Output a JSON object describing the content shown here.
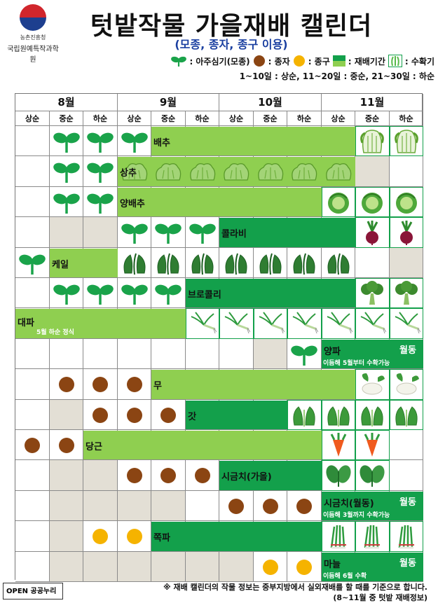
{
  "header": {
    "org_small": "농촌진흥청",
    "org_name": "국립원예특작과학원",
    "title": "텃밭작물 가을재배 캘린더",
    "subtitle": "(모종, 종자, 종구 이용)"
  },
  "legend": {
    "seedling": ": 아주심기(모종)",
    "seed": ": 종자",
    "bulb": ": 종구",
    "period": ": 재배기간",
    "harvest": ": 수확기",
    "periods_note": "1~10일 : 상순, 11~20일 : 중순, 21~30일 : 하순"
  },
  "colors": {
    "bar_light": "#8fcf50",
    "bar_dark": "#13a04b",
    "past": "#e3dfd5",
    "seed": "#8b4513",
    "bulb": "#f5b300"
  },
  "months": [
    "8월",
    "9월",
    "10월",
    "11월"
  ],
  "periods": [
    "상순",
    "중순",
    "하순"
  ],
  "crops": [
    {
      "name": "배추"
    },
    {
      "name": "상추"
    },
    {
      "name": "양배추"
    },
    {
      "name": "콜라비"
    },
    {
      "name": "케일"
    },
    {
      "name": "브로콜리"
    },
    {
      "name": "대파",
      "note": "5월 하순 정식"
    },
    {
      "name": "양파",
      "tag": "월동",
      "note": "이듬해 5월부터 수확가능"
    },
    {
      "name": "무"
    },
    {
      "name": "갓"
    },
    {
      "name": "당근"
    },
    {
      "name": "시금치(가을)"
    },
    {
      "name": "시금치(월동)",
      "tag": "월동",
      "note": "이듬해 3월까지 수확가능"
    },
    {
      "name": "쪽파"
    },
    {
      "name": "마늘",
      "tag": "월동",
      "note": "이듬해 6월 수확"
    }
  ],
  "footer": {
    "badge": "OPEN 공공누리",
    "note1": "※ 재배 캘린더의 작물 정보는 중부지방에서 실외재배를 할 때를 기준으로 합니다.",
    "note2": "(8~11월 중 텃밭 재배정보)"
  }
}
